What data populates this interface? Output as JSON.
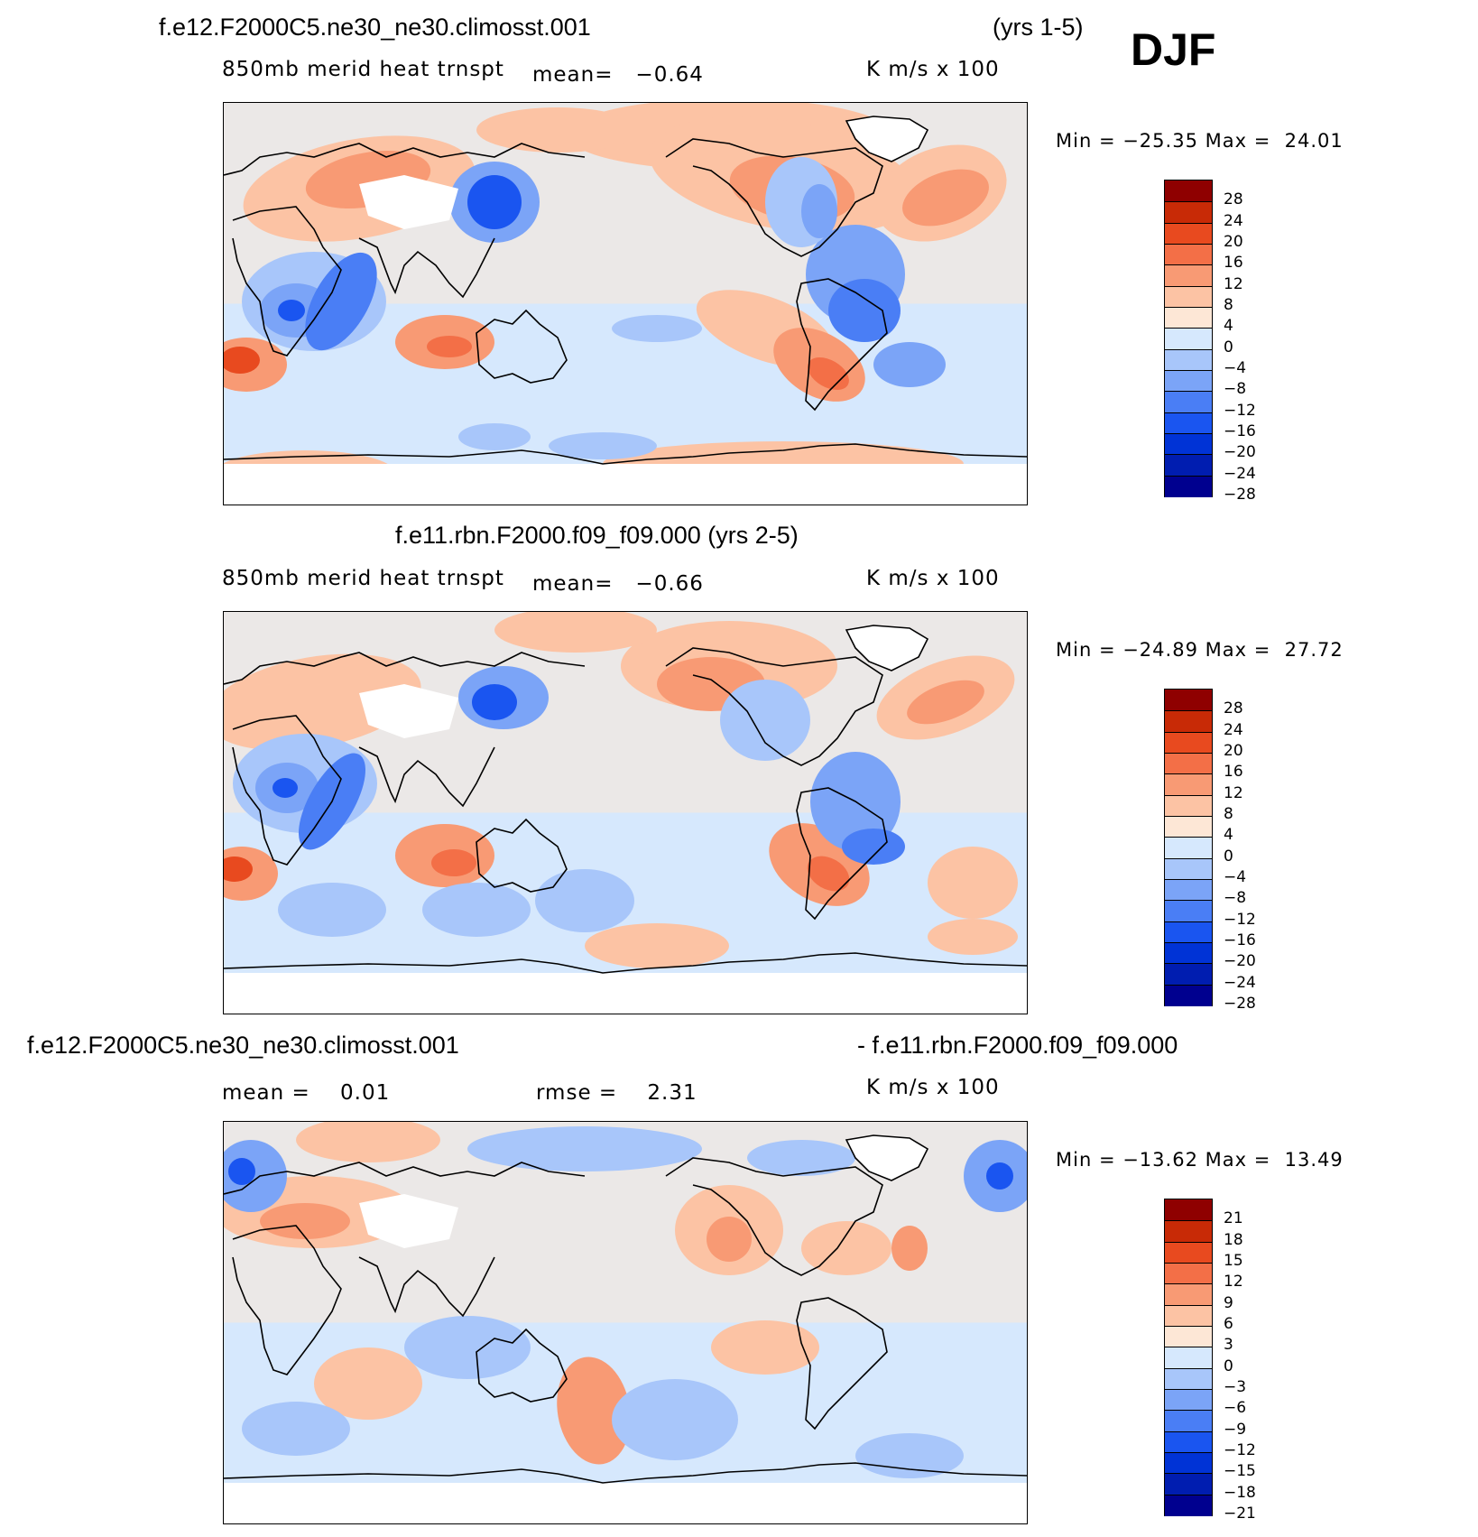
{
  "season_label": "DJF",
  "colors": {
    "palette": [
      "#00008f",
      "#001db0",
      "#0033d6",
      "#1a55f0",
      "#4a7ef5",
      "#7ba4f7",
      "#a8c6fa",
      "#d6e8fd",
      "#fde7d6",
      "#fcc3a4",
      "#f89a74",
      "#f36f47",
      "#e84a1f",
      "#c82a06",
      "#8f0000"
    ],
    "coast": "#000000"
  },
  "panels": [
    {
      "title_left": "f.e12.F2000C5.ne30_ne30.climosst.001",
      "title_right": "(yrs 1-5)",
      "title_center": "",
      "sub_left": "850mb merid heat trnspt",
      "sub_mid": "mean=   −0.64",
      "sub_right": "K m/s x 100",
      "minmax": "Min = −25.35 Max =  24.01",
      "cbar_labels": [
        "28",
        "24",
        "20",
        "16",
        "12",
        "8",
        "4",
        "0",
        "−4",
        "−8",
        "−12",
        "−16",
        "−20",
        "−24",
        "−28"
      ]
    },
    {
      "title_left": "",
      "title_right": "",
      "title_center": "f.e11.rbn.F2000.f09_f09.000 (yrs 2-5)",
      "sub_left": "850mb merid heat trnspt",
      "sub_mid": "mean=   −0.66",
      "sub_right": "K m/s x 100",
      "minmax": "Min = −24.89 Max =  27.72",
      "cbar_labels": [
        "28",
        "24",
        "20",
        "16",
        "12",
        "8",
        "4",
        "0",
        "−4",
        "−8",
        "−12",
        "−16",
        "−20",
        "−24",
        "−28"
      ]
    },
    {
      "title_left": "f.e12.F2000C5.ne30_ne30.climosst.001",
      "title_right": "- f.e11.rbn.F2000.f09_f09.000",
      "title_center": "",
      "sub_left": "mean =    0.01",
      "sub_mid": "rmse =    2.31",
      "sub_right": "K m/s x 100",
      "minmax": "Min = −13.62 Max =  13.49",
      "cbar_labels": [
        "21",
        "18",
        "15",
        "12",
        "9",
        "6",
        "3",
        "0",
        "−3",
        "−6",
        "−9",
        "−12",
        "−15",
        "−18",
        "−21"
      ]
    }
  ]
}
